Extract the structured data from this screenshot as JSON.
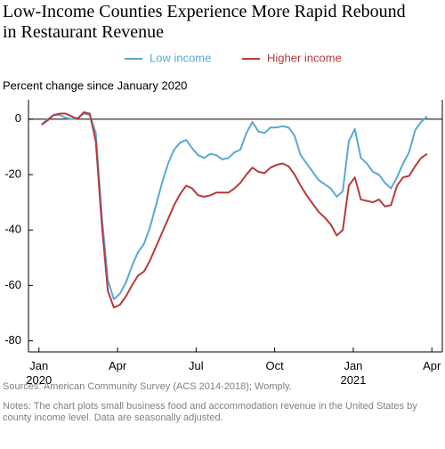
{
  "chart_data": {
    "type": "line",
    "title": "Low-Income Counties Experience More Rapid Rebound in Restaurant Revenue",
    "y_axis_label": "Percent change since January 2020",
    "source": "Sources: American Community Survey (ACS 2014-2018); Womply.",
    "notes": "Notes: The chart plots small business food and accommodation revenue in the United States by county income level. Data are seasonally adjusted.",
    "x": [
      0.1,
      0.33,
      0.56,
      0.79,
      1.02,
      1.25,
      1.48,
      1.71,
      1.94,
      2.17,
      2.4,
      2.63,
      2.86,
      3.09,
      3.32,
      3.55,
      3.78,
      4.01,
      4.24,
      4.47,
      4.7,
      4.93,
      5.16,
      5.39,
      5.62,
      5.85,
      6.08,
      6.31,
      6.54,
      6.77,
      7.0,
      7.23,
      7.46,
      7.69,
      7.92,
      8.15,
      8.38,
      8.61,
      8.84,
      9.07,
      9.3,
      9.53,
      9.76,
      9.99,
      10.22,
      10.45,
      10.68,
      10.91,
      11.14,
      11.37,
      11.6,
      11.83,
      12.06,
      12.29,
      12.52,
      12.75,
      12.98,
      13.21,
      13.44,
      13.67,
      13.9,
      14.13,
      14.36,
      14.59,
      14.82
    ],
    "series": [
      {
        "name": "Low income",
        "color": "#5aa8d6",
        "values": [
          -2,
          0,
          1.5,
          1.5,
          0.5,
          0,
          0.5,
          2,
          1.5,
          -5,
          -35,
          -58,
          -65,
          -63,
          -59,
          -53,
          -48,
          -45,
          -39,
          -31,
          -23,
          -16,
          -11,
          -8.5,
          -7.5,
          -10.5,
          -13,
          -14,
          -12.5,
          -13,
          -14.5,
          -14,
          -12,
          -11,
          -5,
          -1,
          -4.5,
          -5,
          -3,
          -3,
          -2.5,
          -3,
          -6,
          -13,
          -16,
          -19,
          -22,
          -23.5,
          -25,
          -28,
          -26,
          -8,
          -3.5,
          -14,
          -16,
          -19,
          -20,
          -23,
          -25,
          -21,
          -16,
          -12,
          -4,
          -1,
          1
        ]
      },
      {
        "name": "Higher income",
        "color": "#b83a3a",
        "values": [
          -2,
          -0.5,
          1.5,
          2,
          2,
          1,
          0,
          2.5,
          2,
          -8,
          -38,
          -62,
          -68,
          -67,
          -64,
          -60,
          -56.5,
          -55,
          -51,
          -46,
          -41,
          -36,
          -31,
          -27,
          -24,
          -25,
          -27.5,
          -28,
          -27.5,
          -26.5,
          -26.5,
          -26.5,
          -25,
          -23,
          -20,
          -17.5,
          -19,
          -19.5,
          -17.5,
          -16.5,
          -16,
          -17,
          -20,
          -24,
          -27.5,
          -30.5,
          -33.5,
          -35.5,
          -38,
          -42,
          -40,
          -24,
          -21,
          -29,
          -29.5,
          -30,
          -29,
          -31.5,
          -31,
          -24,
          -21,
          -20.5,
          -17,
          -14,
          -12.5
        ]
      }
    ],
    "xlim": [
      -0.4,
      15.4
    ],
    "xticks": [
      {
        "value": 0,
        "label": "Jan 2020"
      },
      {
        "value": 3,
        "label": "Apr"
      },
      {
        "value": 6,
        "label": "Jul"
      },
      {
        "value": 9,
        "label": "Oct"
      },
      {
        "value": 12,
        "label": "Jan 2021"
      },
      {
        "value": 15,
        "label": "Apr"
      }
    ],
    "ylim": [
      -84,
      7
    ],
    "yticks": [
      0,
      -20,
      -40,
      -60,
      -80
    ],
    "zero_line": true
  }
}
